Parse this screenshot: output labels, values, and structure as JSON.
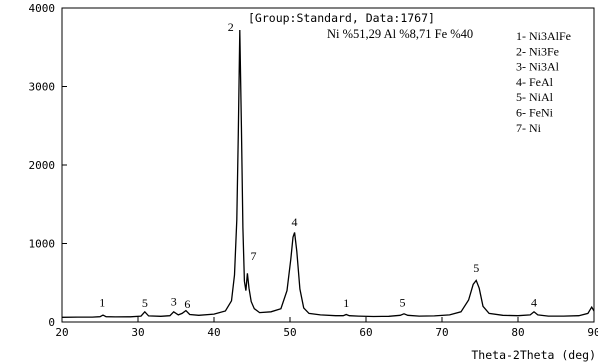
{
  "chart_data": {
    "type": "line",
    "header": "[Group:Standard, Data:1767]",
    "composition": "Ni %51,29 Al %8,71 Fe %40",
    "xlabel": "Theta-2Theta (deg)",
    "ylabel": "",
    "xlim": [
      20,
      90
    ],
    "ylim": [
      0,
      4000
    ],
    "x_ticks": [
      20,
      30,
      40,
      50,
      60,
      70,
      80,
      90
    ],
    "y_ticks": [
      0,
      1000,
      2000,
      3000,
      4000
    ],
    "grid": false,
    "legend_position": "top-right",
    "legend": [
      "1- Ni3AlFe",
      "2- Ni3Fe",
      "3- Ni3Al",
      "4- FeAl",
      "5- NiAl",
      "6- FeNi",
      "7- Ni"
    ],
    "series": [
      {
        "x": [
          20,
          22,
          24,
          25.0,
          25.4,
          25.8,
          27,
          29,
          30.4,
          30.9,
          31.4,
          33,
          34.2,
          34.7,
          35.3,
          35.8,
          36.3,
          36.8,
          38,
          40,
          41.5,
          42.3,
          42.7,
          43.0,
          43.2,
          43.4,
          43.6,
          43.8,
          44.0,
          44.2,
          44.4,
          44.6,
          44.9,
          45.3,
          46,
          47.5,
          48.8,
          49.6,
          50.1,
          50.4,
          50.6,
          50.9,
          51.3,
          51.8,
          52.5,
          54,
          56,
          57.0,
          57.4,
          57.8,
          59,
          61,
          63,
          64.5,
          65.0,
          65.5,
          67,
          69,
          71,
          72.5,
          73.5,
          74.1,
          74.5,
          74.9,
          75.4,
          76.2,
          78,
          80,
          81.6,
          82.1,
          82.6,
          84,
          86,
          88,
          89.2,
          89.7,
          90
        ],
        "y": [
          60,
          62,
          63,
          68,
          88,
          68,
          65,
          66,
          75,
          130,
          78,
          72,
          80,
          130,
          90,
          110,
          145,
          95,
          85,
          100,
          140,
          270,
          600,
          1300,
          2400,
          3720,
          2500,
          1200,
          520,
          400,
          620,
          430,
          260,
          170,
          120,
          130,
          170,
          400,
          800,
          1080,
          1140,
          900,
          420,
          180,
          110,
          90,
          80,
          80,
          95,
          80,
          75,
          70,
          72,
          85,
          105,
          85,
          75,
          78,
          90,
          130,
          280,
          480,
          530,
          430,
          200,
          110,
          85,
          80,
          90,
          130,
          90,
          75,
          75,
          80,
          110,
          190,
          140
        ]
      }
    ],
    "annotations": [
      {
        "label": "1",
        "x": 25.3,
        "y": 200
      },
      {
        "label": "5",
        "x": 30.9,
        "y": 190
      },
      {
        "label": "3",
        "x": 34.7,
        "y": 210
      },
      {
        "label": "6",
        "x": 36.5,
        "y": 180
      },
      {
        "label": "2",
        "x": 42.2,
        "y": 3710
      },
      {
        "label": "7",
        "x": 45.2,
        "y": 790
      },
      {
        "label": "4",
        "x": 50.6,
        "y": 1220
      },
      {
        "label": "1",
        "x": 57.4,
        "y": 190
      },
      {
        "label": "5",
        "x": 64.8,
        "y": 200
      },
      {
        "label": "5",
        "x": 74.5,
        "y": 640
      },
      {
        "label": "4",
        "x": 82.1,
        "y": 200
      }
    ]
  }
}
